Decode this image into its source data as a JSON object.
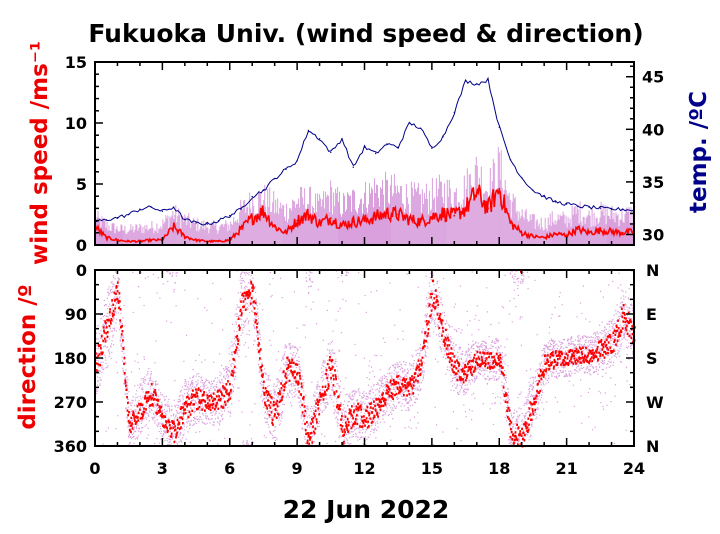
{
  "title": "Fukuoka Univ. (wind speed & direction)",
  "colors": {
    "wind_mean": "#ff0000",
    "wind_range": "#d9a0dd",
    "temperature": "#000088",
    "direction_mean": "#ff0000",
    "direction_range": "#d9a0dd",
    "axis": "#000000"
  },
  "chart_data": [
    {
      "type": "line",
      "panel": "top",
      "title": "Fukuoka Univ. (wind speed & direction)",
      "xlabel": "22 Jun 2022",
      "ylabel": "wind speed /ms⁻¹",
      "y2label": "temp. /ºC",
      "xlim": [
        0,
        24
      ],
      "ylim": [
        0,
        15
      ],
      "y2lim": [
        29,
        46.4
      ],
      "x_ticks": [
        0,
        3,
        6,
        9,
        12,
        15,
        18,
        21,
        24
      ],
      "x_tick_labels": [
        "0",
        "3",
        "6",
        "9",
        "12",
        "15",
        "18",
        "21",
        "24"
      ],
      "y_ticks": [
        0,
        5,
        10,
        15
      ],
      "y_tick_labels": [
        "0",
        "5",
        "10",
        "15"
      ],
      "y2_ticks": [
        30,
        35,
        40,
        45
      ],
      "y2_tick_labels": [
        "30",
        "35",
        "40",
        "45"
      ],
      "grid": false,
      "series": [
        {
          "role": "wind_speed_mean",
          "axis": "left",
          "x": [
            0,
            0.5,
            1,
            1.5,
            2,
            2.5,
            3,
            3.5,
            4,
            4.5,
            5,
            5.5,
            6,
            6.5,
            7,
            7.5,
            8,
            8.5,
            9,
            9.5,
            10,
            10.5,
            11,
            11.5,
            12,
            12.5,
            13,
            13.5,
            14,
            14.5,
            15,
            15.5,
            16,
            16.5,
            17,
            17.5,
            18,
            18.5,
            19,
            19.5,
            20,
            20.5,
            21,
            21.5,
            22,
            22.5,
            23,
            23.5,
            24
          ],
          "values": [
            1.5,
            0.6,
            0.4,
            0.3,
            0.3,
            0.4,
            0.4,
            1.5,
            0.7,
            0.4,
            0.3,
            0.3,
            0.4,
            1.3,
            2.2,
            2.8,
            1.5,
            1.0,
            2.0,
            2.5,
            1.8,
            2.2,
            1.6,
            1.9,
            2.0,
            2.3,
            2.6,
            2.5,
            2.1,
            1.9,
            2.3,
            2.6,
            2.4,
            3.0,
            4.3,
            3.0,
            4.6,
            1.8,
            1.0,
            0.7,
            0.6,
            0.9,
            0.8,
            1.3,
            1.0,
            1.2,
            1.1,
            1.0,
            1.1
          ]
        },
        {
          "role": "wind_speed_max",
          "axis": "left",
          "x": [
            0,
            0.5,
            1,
            1.5,
            2,
            2.5,
            3,
            3.5,
            4,
            4.5,
            5,
            5.5,
            6,
            6.5,
            7,
            7.5,
            8,
            8.5,
            9,
            9.5,
            10,
            10.5,
            11,
            11.5,
            12,
            12.5,
            13,
            13.5,
            14,
            14.5,
            15,
            15.5,
            16,
            16.5,
            17,
            17.5,
            18,
            18.5,
            19,
            19.5,
            20,
            20.5,
            21,
            21.5,
            22,
            22.5,
            23,
            23.5,
            24
          ],
          "values": [
            3.0,
            2.2,
            1.8,
            1.7,
            1.9,
            2.0,
            2.3,
            3.5,
            2.8,
            2.3,
            2.1,
            2.0,
            2.2,
            3.8,
            4.8,
            5.2,
            4.4,
            3.8,
            4.9,
            5.0,
            4.2,
            5.6,
            4.4,
            5.0,
            5.4,
            6.2,
            6.0,
            5.9,
            5.3,
            5.1,
            5.5,
            6.0,
            5.6,
            6.3,
            8.1,
            6.2,
            8.6,
            4.9,
            3.3,
            2.6,
            2.4,
            3.0,
            2.8,
            3.8,
            3.2,
            3.6,
            3.4,
            3.3,
            3.5
          ]
        },
        {
          "role": "temperature",
          "axis": "right",
          "x": [
            0,
            0.5,
            1,
            1.5,
            2,
            2.5,
            3,
            3.5,
            4,
            4.5,
            5,
            5.5,
            6,
            6.5,
            7,
            7.5,
            8,
            8.5,
            9,
            9.5,
            10,
            10.5,
            11,
            11.5,
            12,
            12.5,
            13,
            13.5,
            14,
            14.5,
            15,
            15.5,
            16,
            16.5,
            17,
            17.5,
            18,
            18.5,
            19,
            19.5,
            20,
            20.5,
            21,
            21.5,
            22,
            22.5,
            23,
            23.5,
            24
          ],
          "values": [
            31.2,
            31.4,
            31.6,
            31.9,
            32.4,
            32.6,
            32.2,
            32.6,
            31.4,
            31.1,
            31.0,
            31.3,
            31.8,
            32.4,
            33.6,
            34.2,
            35.3,
            36.2,
            37.0,
            39.9,
            39.1,
            37.8,
            39.1,
            36.4,
            38.3,
            37.7,
            38.6,
            38.3,
            40.6,
            40.1,
            38.2,
            39.3,
            41.6,
            44.6,
            44.3,
            44.7,
            40.2,
            37.1,
            35.4,
            34.2,
            33.6,
            33.1,
            32.9,
            32.7,
            32.6,
            32.5,
            32.4,
            32.4,
            32.3
          ]
        }
      ]
    },
    {
      "type": "scatter",
      "panel": "bottom",
      "xlabel": "22 Jun 2022",
      "ylabel": "direction /º",
      "xlim": [
        0,
        24
      ],
      "ylim": [
        360,
        0
      ],
      "x_ticks": [
        0,
        3,
        6,
        9,
        12,
        15,
        18,
        21,
        24
      ],
      "x_tick_labels": [
        "0",
        "3",
        "6",
        "9",
        "12",
        "15",
        "18",
        "21",
        "24"
      ],
      "y_ticks": [
        0,
        90,
        180,
        270,
        360
      ],
      "y_tick_labels": [
        "0",
        "90",
        "180",
        "270",
        "360"
      ],
      "y2_tick_labels": [
        "N",
        "E",
        "S",
        "W",
        "N"
      ],
      "grid": false,
      "series": [
        {
          "role": "direction_mean",
          "x": [
            0,
            0.5,
            1,
            1.5,
            2,
            2.5,
            3,
            3.5,
            4,
            4.5,
            5,
            5.5,
            6,
            6.5,
            7,
            7.5,
            8,
            8.5,
            9,
            9.5,
            10,
            10.5,
            11,
            11.5,
            12,
            12.5,
            13,
            13.5,
            14,
            14.5,
            15,
            15.5,
            16,
            16.5,
            17,
            17.5,
            18,
            18.5,
            19,
            19.5,
            20,
            20.5,
            21,
            21.5,
            22,
            22.5,
            23,
            23.5,
            24
          ],
          "values": [
            190,
            120,
            40,
            320,
            280,
            250,
            300,
            330,
            280,
            260,
            270,
            265,
            240,
            60,
            40,
            250,
            300,
            200,
            210,
            350,
            260,
            190,
            330,
            290,
            300,
            280,
            250,
            230,
            240,
            190,
            40,
            130,
            200,
            210,
            180,
            185,
            180,
            330,
            340,
            270,
            190,
            180,
            180,
            170,
            175,
            160,
            150,
            90,
            130
          ],
          "spread": [
            50,
            60,
            40,
            35,
            45,
            40,
            35,
            40,
            45,
            40,
            35,
            40,
            45,
            55,
            45,
            40,
            50,
            45,
            40,
            50,
            40,
            55,
            45,
            40,
            45,
            40,
            40,
            35,
            40,
            45,
            50,
            40,
            40,
            35,
            30,
            30,
            35,
            40,
            45,
            45,
            35,
            30,
            30,
            30,
            30,
            35,
            40,
            45,
            45
          ]
        }
      ]
    }
  ]
}
